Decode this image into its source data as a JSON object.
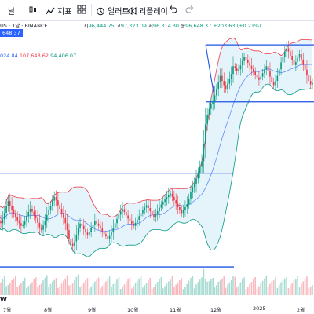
{
  "toolbar": {
    "period_label": "날",
    "indicators_label": "지표",
    "alert_label": "얼러트",
    "replay_label": "리플레이"
  },
  "legend": {
    "symbol_suffix": "US · 1날 · BINANCE",
    "o_label": "시",
    "o_value": "96,444.75",
    "h_label": "고",
    "h_value": "97,323.09",
    "l_label": "저",
    "l_value": "96,314.30",
    "c_label": "종",
    "c_value": "96,648.37",
    "change": "+203.63 (+0.21%)",
    "price_tag": "648.37",
    "bb_values": [
      "024.84",
      "107,643.62",
      "94,406.07"
    ]
  },
  "footer": {
    "watermark": "W"
  },
  "colors": {
    "candle_up": "#089981",
    "candle_down": "#f23645",
    "bb_basis": "#2962ff",
    "bb_upper": "#f23645",
    "bb_lower": "#089981",
    "bb_fill": "#b3e0f2",
    "trendline": "#1e53e5"
  },
  "chart_data": {
    "type": "candlestick",
    "title": "",
    "x_ticks": [
      "7월",
      "8월",
      "9월",
      "10월",
      "11월",
      "12월",
      "2025",
      "2월"
    ],
    "trendlines": [
      "upper-range",
      "mid-range",
      "lower-range",
      "support",
      "resistance"
    ],
    "series": [
      {
        "name": "BTCUSD",
        "values": [
          63000,
          62500,
          61000,
          60500,
          61500,
          63200,
          65000,
          66200,
          65000,
          63800,
          62800,
          62000,
          61200,
          60500,
          59800,
          60200,
          61100,
          62300,
          63400,
          64200,
          63500,
          62500,
          61800,
          60600,
          59400,
          58800,
          59900,
          61200,
          62600,
          63800,
          65000,
          66300,
          67200,
          66400,
          65100,
          64200,
          63100,
          61800,
          60500,
          58700,
          56500,
          55200,
          54500,
          55800,
          57500,
          59300,
          60400,
          59800,
          58900,
          58100,
          57400,
          58300,
          59200,
          60100,
          61000,
          60400,
          59800,
          59100,
          58400,
          57700,
          57100,
          56500,
          57200,
          58100,
          59300,
          60500,
          61600,
          62700,
          63500,
          64100,
          63400,
          62500,
          61700,
          61000,
          60400,
          59800,
          60600,
          61400,
          62300,
          63100,
          63800,
          64500,
          65100,
          64400,
          63600,
          62700,
          62100,
          62800,
          63600,
          64500,
          65300,
          66000,
          66600,
          67200,
          67800,
          68100,
          67300,
          66400,
          65500,
          64600,
          63800,
          63100,
          63800,
          64600,
          65400,
          66800,
          68500,
          69800,
          70500,
          72000,
          73500,
          75000,
          76500,
          81000,
          86000,
          88500,
          90000,
          91200,
          92000,
          93500,
          95000,
          97000,
          98500,
          97200,
          96100,
          95200,
          96500,
          97800,
          99000,
          101000,
          100500,
          99800,
          100200,
          101200,
          102300,
          103400,
          102600,
          101900,
          101100,
          100300,
          99500,
          98700,
          98100,
          97500,
          98300,
          99200,
          100100,
          101000,
          99700,
          98300,
          96800,
          96100,
          97200,
          98500,
          100200,
          102000,
          103500,
          104800,
          105600,
          104800,
          103700,
          102500,
          101300,
          102100,
          103200,
          104100,
          102700,
          101300,
          100100,
          98600,
          97200,
          96300,
          96648
        ]
      }
    ],
    "ylim": [
      48000,
      112000
    ]
  }
}
